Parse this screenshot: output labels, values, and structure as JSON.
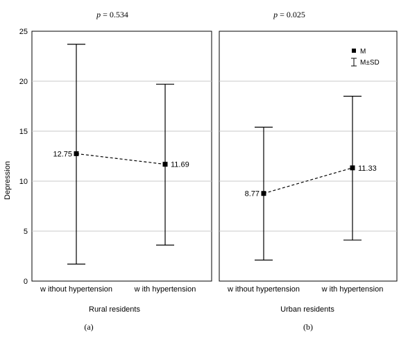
{
  "figure": {
    "ylabel": "Depression"
  },
  "legend": {
    "mean_label": "M",
    "sd_label": "M±SD"
  },
  "chart_data": [
    {
      "type": "errorbar",
      "panel_label": "(a)",
      "p_symbol": "p",
      "p_text": " = 0.534",
      "xlabel": "Rural residents",
      "ylabel": "Depression",
      "ylim": [
        0,
        25
      ],
      "yticks": [
        0,
        5,
        10,
        15,
        20,
        25
      ],
      "grid": true,
      "categories": [
        "w ithout hypertension",
        "w ith hypertension"
      ],
      "mean": [
        12.75,
        11.69
      ],
      "mean_labels": [
        "12.75",
        "11.69"
      ],
      "upper": [
        23.7,
        19.7
      ],
      "lower": [
        1.7,
        3.6
      ]
    },
    {
      "type": "errorbar",
      "panel_label": "(b)",
      "p_symbol": "p",
      "p_text": " = 0.025",
      "xlabel": "Urban residents",
      "ylim": [
        0,
        25
      ],
      "grid": true,
      "legend": "top-right",
      "categories": [
        "w ithout hypertension",
        "w ith hypertension"
      ],
      "mean": [
        8.77,
        11.33
      ],
      "mean_labels": [
        "8.77",
        "11.33"
      ],
      "upper": [
        15.4,
        18.5
      ],
      "lower": [
        2.1,
        4.1
      ]
    }
  ]
}
